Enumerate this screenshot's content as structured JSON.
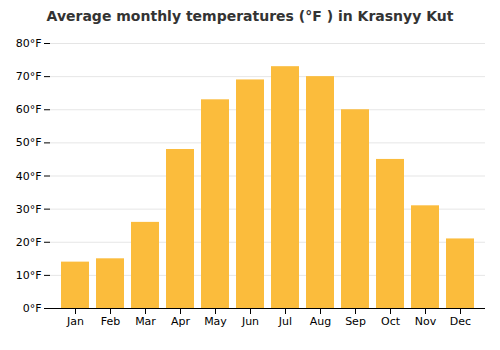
{
  "chart_data": {
    "type": "bar",
    "title": "Average monthly temperatures (°F ) in Krasnyy Kut",
    "categories": [
      "Jan",
      "Feb",
      "Mar",
      "Apr",
      "May",
      "Jun",
      "Jul",
      "Aug",
      "Sep",
      "Oct",
      "Nov",
      "Dec"
    ],
    "values": [
      14,
      15,
      26,
      48,
      63,
      69,
      73,
      70,
      60,
      45,
      31,
      21
    ],
    "color": "#FBBC3C",
    "ylim": [
      0,
      80
    ],
    "yticks": [
      {
        "value": 0,
        "label": "0°F"
      },
      {
        "value": 10,
        "label": "10°F"
      },
      {
        "value": 20,
        "label": "20°F"
      },
      {
        "value": 30,
        "label": "30°F"
      },
      {
        "value": 40,
        "label": "40°F"
      },
      {
        "value": 50,
        "label": "50°F"
      },
      {
        "value": 60,
        "label": "60°F"
      },
      {
        "value": 70,
        "label": "70°F"
      },
      {
        "value": 80,
        "label": "80°F"
      }
    ],
    "grid": true
  }
}
